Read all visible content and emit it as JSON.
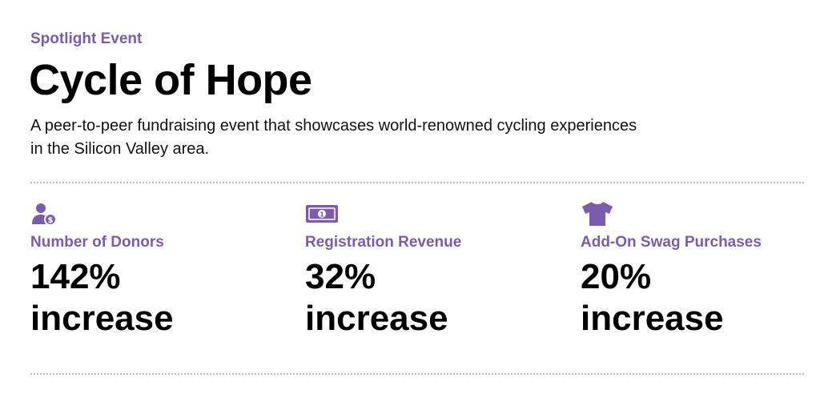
{
  "header": {
    "eyebrow": "Spotlight Event",
    "title": "Cycle of Hope",
    "description": "A peer-to-peer fundraising event that showcases world-renowned cycling experiences in the Silicon Valley area."
  },
  "accent_color": "#7b5bb0",
  "stats": [
    {
      "icon": "donor-icon",
      "label": "Number of Donors",
      "value": "142%",
      "unit": "increase"
    },
    {
      "icon": "money-bill-icon",
      "label": "Registration Revenue",
      "value": "32%",
      "unit": "increase"
    },
    {
      "icon": "tshirt-icon",
      "label": "Add-On Swag Purchases",
      "value": "20%",
      "unit": "increase"
    }
  ]
}
